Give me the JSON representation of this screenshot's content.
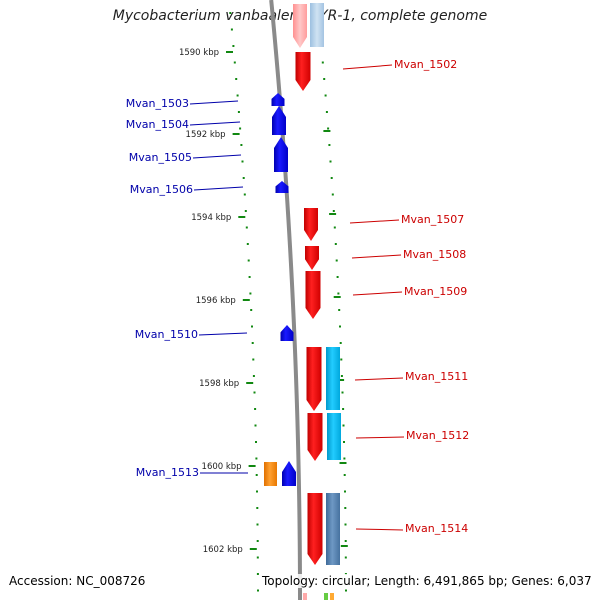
{
  "header": {
    "title": "Mycobacterium vanbaalenii PYR-1, complete genome"
  },
  "footer": {
    "accession": "Accession: NC_008726",
    "stats": "Topology: circular; Length: 6,491,865 bp; Genes: 6,037"
  },
  "colors": {
    "forward_gene": "#ff0000",
    "reverse_gene": "#0000ee",
    "forward_label": "#cc0000",
    "reverse_label": "#0000aa",
    "tick": "#118811",
    "backbone": "#888888",
    "feature_cyan": "#00bbee",
    "feature_steelblue": "#4f7fb0",
    "feature_orange": "#ff8800"
  },
  "scale_labels": [
    "1590 kbp",
    "1592 kbp",
    "1594 kbp",
    "1596 kbp",
    "1598 kbp",
    "1600 kbp",
    "1602 kbp"
  ],
  "genes": [
    {
      "name": "Mvan_1502",
      "strand": "+"
    },
    {
      "name": "Mvan_1503",
      "strand": "-"
    },
    {
      "name": "Mvan_1504",
      "strand": "-"
    },
    {
      "name": "Mvan_1505",
      "strand": "-"
    },
    {
      "name": "Mvan_1506",
      "strand": "-"
    },
    {
      "name": "Mvan_1507",
      "strand": "+"
    },
    {
      "name": "Mvan_1508",
      "strand": "+"
    },
    {
      "name": "Mvan_1509",
      "strand": "+"
    },
    {
      "name": "Mvan_1510",
      "strand": "-"
    },
    {
      "name": "Mvan_1511",
      "strand": "+"
    },
    {
      "name": "Mvan_1512",
      "strand": "+"
    },
    {
      "name": "Mvan_1513",
      "strand": "-"
    },
    {
      "name": "Mvan_1514",
      "strand": "+"
    }
  ]
}
